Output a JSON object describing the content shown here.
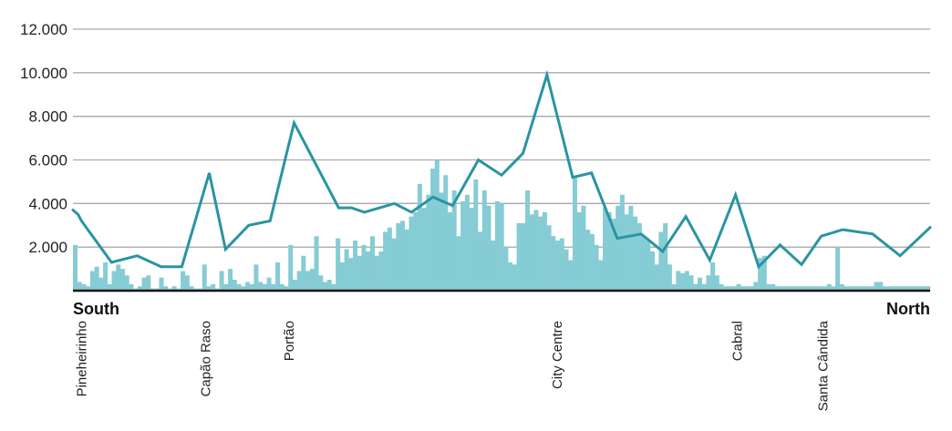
{
  "chart_data": {
    "type": "bar-line",
    "title": "",
    "xlabel": "",
    "ylabel": "",
    "ylim": [
      0,
      12000
    ],
    "y_ticks": [
      {
        "value": 2000,
        "label": "2.000"
      },
      {
        "value": 4000,
        "label": "4.000"
      },
      {
        "value": 6000,
        "label": "6.000"
      },
      {
        "value": 8000,
        "label": "8.000"
      },
      {
        "value": 10000,
        "label": "10.000"
      },
      {
        "value": 12000,
        "label": "12.000"
      }
    ],
    "grid": true,
    "x_range": [
      0,
      100
    ],
    "directions": {
      "start": "South",
      "end": "North"
    },
    "locations": [
      {
        "name": "Pineheirinho",
        "x": 1
      },
      {
        "name": "Capão Raso",
        "x": 15.5
      },
      {
        "name": "Portão",
        "x": 25.2
      },
      {
        "name": "City Centre",
        "x": 56.5
      },
      {
        "name": "Cabral",
        "x": 77.5
      },
      {
        "name": "Santa Cândida",
        "x": 87.5
      }
    ],
    "line_series": {
      "color": "#2a94a3",
      "points": [
        [
          0,
          3700
        ],
        [
          0.6,
          3500
        ],
        [
          1.0,
          3200
        ],
        [
          4.5,
          1300
        ],
        [
          7.5,
          1600
        ],
        [
          10.3,
          1100
        ],
        [
          12.7,
          1100
        ],
        [
          15.9,
          5400
        ],
        [
          17.8,
          1900
        ],
        [
          20.5,
          3000
        ],
        [
          23.0,
          3200
        ],
        [
          25.8,
          7700
        ],
        [
          31.0,
          3800
        ],
        [
          32.5,
          3800
        ],
        [
          34.0,
          3600
        ],
        [
          37.5,
          4000
        ],
        [
          39.5,
          3600
        ],
        [
          42.0,
          4300
        ],
        [
          44.3,
          3900
        ],
        [
          47.3,
          6000
        ],
        [
          50.0,
          5300
        ],
        [
          52.5,
          6300
        ],
        [
          55.3,
          9900
        ],
        [
          58.3,
          5200
        ],
        [
          60.5,
          5400
        ],
        [
          63.5,
          2400
        ],
        [
          66.3,
          2600
        ],
        [
          68.8,
          1800
        ],
        [
          71.5,
          3400
        ],
        [
          74.3,
          1400
        ],
        [
          77.3,
          4400
        ],
        [
          80.0,
          1100
        ],
        [
          82.5,
          2100
        ],
        [
          85.0,
          1200
        ],
        [
          87.3,
          2500
        ],
        [
          89.8,
          2800
        ],
        [
          93.3,
          2600
        ],
        [
          96.5,
          1600
        ],
        [
          100.0,
          2900
        ]
      ]
    },
    "bar_series": {
      "color": "#86ccd5",
      "values": [
        2100,
        400,
        300,
        200,
        900,
        1100,
        600,
        1300,
        300,
        900,
        1200,
        1000,
        700,
        300,
        100,
        200,
        600,
        700,
        100,
        100,
        600,
        200,
        100,
        200,
        100,
        900,
        700,
        200,
        100,
        100,
        1200,
        200,
        300,
        100,
        900,
        300,
        1000,
        500,
        300,
        200,
        400,
        300,
        1200,
        400,
        300,
        600,
        300,
        1300,
        300,
        200,
        2100,
        500,
        900,
        1600,
        900,
        1000,
        2500,
        700,
        400,
        500,
        300,
        2400,
        1300,
        1900,
        1500,
        2300,
        1600,
        2100,
        1800,
        2500,
        1600,
        1800,
        2700,
        2900,
        2400,
        3100,
        3200,
        2800,
        3400,
        3600,
        4900,
        3800,
        4400,
        5600,
        6000,
        4500,
        5300,
        3600,
        4600,
        2500,
        4100,
        4400,
        3800,
        5100,
        2700,
        4600,
        3900,
        2300,
        4100,
        4000,
        2000,
        1300,
        1200,
        3100,
        3100,
        4600,
        3500,
        3700,
        3400,
        3600,
        3000,
        2500,
        2300,
        2400,
        1900,
        1400,
        5200,
        3600,
        3900,
        2800,
        2600,
        2100,
        1400,
        3800,
        3600,
        3300,
        3900,
        4400,
        3500,
        3900,
        3400,
        3100,
        2500,
        2300,
        1800,
        1200,
        2700,
        3100,
        1200,
        300,
        900,
        800,
        900,
        700,
        300,
        600,
        300,
        700,
        1300,
        700,
        300,
        200,
        200,
        200,
        300,
        200,
        200,
        200,
        400,
        1500,
        1600,
        300,
        300,
        200,
        200,
        200,
        200,
        200,
        200,
        200,
        200,
        200,
        200,
        200,
        200,
        300,
        200,
        2000,
        300,
        200,
        200,
        200,
        200,
        200,
        200,
        200,
        400,
        400,
        200,
        200,
        200,
        200,
        200,
        200,
        200,
        200,
        200,
        200,
        200
      ]
    }
  }
}
